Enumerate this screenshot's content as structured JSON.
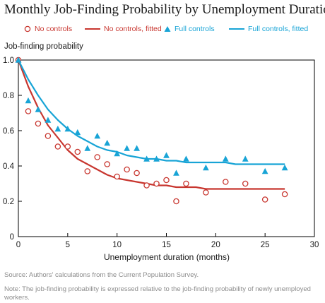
{
  "title": "Monthly Job-Finding Probability by Unemployment Duration",
  "source": "Source: Authors' calculations from the Current Population Survey.",
  "note": "Note: The job-finding probability is expressed relative to the job-finding probability of newly unemployed workers.",
  "colors": {
    "red": "#c8362f",
    "blue": "#18a4d6",
    "axis": "#000000",
    "text": "#1a1a1a"
  },
  "legend": [
    {
      "label": "No controls",
      "marker": "circle-open",
      "color": "#c8362f"
    },
    {
      "label": "No controls, fitted",
      "marker": "line",
      "color": "#c8362f"
    },
    {
      "label": "Full controls",
      "marker": "triangle",
      "color": "#18a4d6"
    },
    {
      "label": "Full controls, fitted",
      "marker": "line",
      "color": "#18a4d6"
    }
  ],
  "chart_data": {
    "type": "scatter",
    "title": "Monthly Job-Finding Probability by Unemployment Duration",
    "xlabel": "Unemployment duration (months)",
    "ylabel": "Job-finding probability",
    "xlim": [
      0,
      30
    ],
    "ylim": [
      0,
      1.0
    ],
    "xticks": [
      0,
      5,
      10,
      15,
      20,
      25,
      30
    ],
    "yticks": [
      0,
      0.2,
      0.4,
      0.6,
      0.8,
      1.0
    ],
    "ytick_labels": [
      "0",
      "0.2",
      "0.4",
      "0.6",
      "0.8",
      "1.0"
    ],
    "grid": false,
    "legend_position": "top",
    "series": [
      {
        "name": "No controls",
        "kind": "points",
        "marker": "circle-open",
        "color": "#c8362f",
        "x": [
          0,
          1,
          2,
          3,
          4,
          5,
          6,
          7,
          8,
          9,
          10,
          11,
          12,
          13,
          14,
          15,
          16,
          17,
          19,
          21,
          23,
          25,
          27
        ],
        "y": [
          1.0,
          0.71,
          0.64,
          0.57,
          0.51,
          0.51,
          0.48,
          0.37,
          0.45,
          0.41,
          0.34,
          0.38,
          0.36,
          0.29,
          0.3,
          0.32,
          0.2,
          0.3,
          0.25,
          0.31,
          0.3,
          0.21,
          0.24
        ]
      },
      {
        "name": "No controls, fitted",
        "kind": "line",
        "color": "#c8362f",
        "x": [
          0,
          1,
          2,
          3,
          4,
          5,
          6,
          7,
          8,
          9,
          10,
          11,
          12,
          13,
          14,
          15,
          16,
          17,
          18,
          19,
          20,
          21,
          22,
          23,
          24,
          25,
          26,
          27
        ],
        "y": [
          1.0,
          0.85,
          0.73,
          0.63,
          0.56,
          0.49,
          0.44,
          0.41,
          0.38,
          0.35,
          0.33,
          0.32,
          0.31,
          0.3,
          0.29,
          0.29,
          0.28,
          0.28,
          0.28,
          0.27,
          0.27,
          0.27,
          0.27,
          0.27,
          0.27,
          0.27,
          0.27,
          0.27
        ]
      },
      {
        "name": "Full controls",
        "kind": "points",
        "marker": "triangle",
        "color": "#18a4d6",
        "x": [
          0,
          1,
          2,
          3,
          4,
          5,
          6,
          7,
          8,
          9,
          10,
          11,
          12,
          13,
          14,
          15,
          16,
          17,
          19,
          21,
          23,
          25,
          27
        ],
        "y": [
          1.0,
          0.77,
          0.72,
          0.66,
          0.61,
          0.61,
          0.59,
          0.5,
          0.57,
          0.53,
          0.47,
          0.5,
          0.5,
          0.44,
          0.44,
          0.46,
          0.36,
          0.44,
          0.39,
          0.44,
          0.44,
          0.37,
          0.39
        ]
      },
      {
        "name": "Full controls, fitted",
        "kind": "line",
        "color": "#18a4d6",
        "x": [
          0,
          1,
          2,
          3,
          4,
          5,
          6,
          7,
          8,
          9,
          10,
          11,
          12,
          13,
          14,
          15,
          16,
          17,
          18,
          19,
          20,
          21,
          22,
          23,
          24,
          25,
          26,
          27
        ],
        "y": [
          1.0,
          0.89,
          0.8,
          0.72,
          0.66,
          0.61,
          0.57,
          0.54,
          0.51,
          0.49,
          0.48,
          0.46,
          0.45,
          0.44,
          0.44,
          0.43,
          0.43,
          0.42,
          0.42,
          0.42,
          0.42,
          0.42,
          0.41,
          0.41,
          0.41,
          0.41,
          0.41,
          0.41
        ]
      }
    ]
  }
}
